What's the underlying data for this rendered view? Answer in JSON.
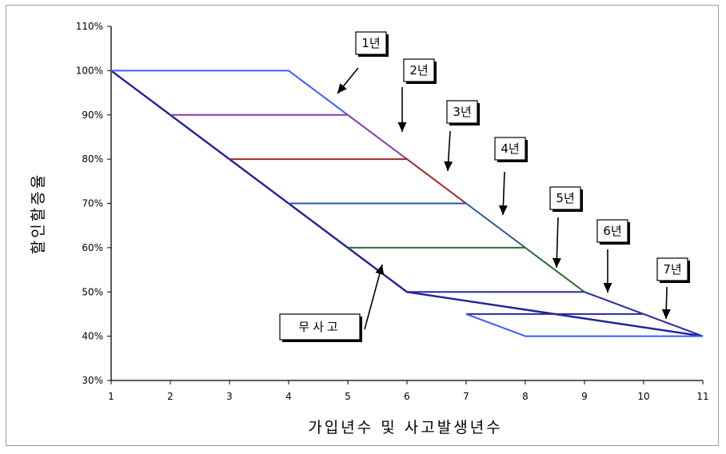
{
  "chart_data": {
    "type": "line",
    "xlabel": "가입년수 및 사고발생년수",
    "ylabel": "할인할증율",
    "xlim": [
      1,
      11
    ],
    "ylim": [
      30,
      110
    ],
    "x_ticks": [
      1,
      2,
      3,
      4,
      5,
      6,
      7,
      8,
      9,
      10,
      11
    ],
    "y_ticks": [
      30,
      40,
      50,
      60,
      70,
      80,
      90,
      100,
      110
    ],
    "y_tick_labels": [
      "30%",
      "40%",
      "50%",
      "60%",
      "70%",
      "80%",
      "90%",
      "100%",
      "110%"
    ],
    "grid": false,
    "series": [
      {
        "name": "무사고",
        "color": "#22229a",
        "x": [
          1,
          6,
          11
        ],
        "y": [
          100,
          50,
          40
        ]
      },
      {
        "color": "#3a5cff",
        "x": [
          1,
          4,
          5
        ],
        "y": [
          100,
          100,
          90
        ]
      },
      {
        "color": "#8a3aaa",
        "x": [
          2,
          5,
          6
        ],
        "y": [
          90,
          90,
          80
        ]
      },
      {
        "color": "#a0282a",
        "x": [
          3,
          6,
          7
        ],
        "y": [
          80,
          80,
          70
        ]
      },
      {
        "color": "#2a5a9a",
        "x": [
          4,
          7,
          8
        ],
        "y": [
          70,
          70,
          60
        ]
      },
      {
        "color": "#2e6a3a",
        "x": [
          5,
          8,
          9
        ],
        "y": [
          60,
          60,
          50
        ]
      },
      {
        "color": "#2a2a9a",
        "x": [
          6,
          9,
          10
        ],
        "y": [
          50,
          50,
          45
        ]
      },
      {
        "color": "#2a2a9a",
        "x": [
          7,
          10,
          11
        ],
        "y": [
          45,
          45,
          40
        ]
      },
      {
        "color": "#3a5cff",
        "x": [
          7,
          8,
          11
        ],
        "y": [
          45,
          40,
          40
        ]
      }
    ],
    "annotations": [
      {
        "label": "1년"
      },
      {
        "label": "2년"
      },
      {
        "label": "3년"
      },
      {
        "label": "4년"
      },
      {
        "label": "5년"
      },
      {
        "label": "6년"
      },
      {
        "label": "7년"
      },
      {
        "label": "무사고"
      }
    ]
  }
}
